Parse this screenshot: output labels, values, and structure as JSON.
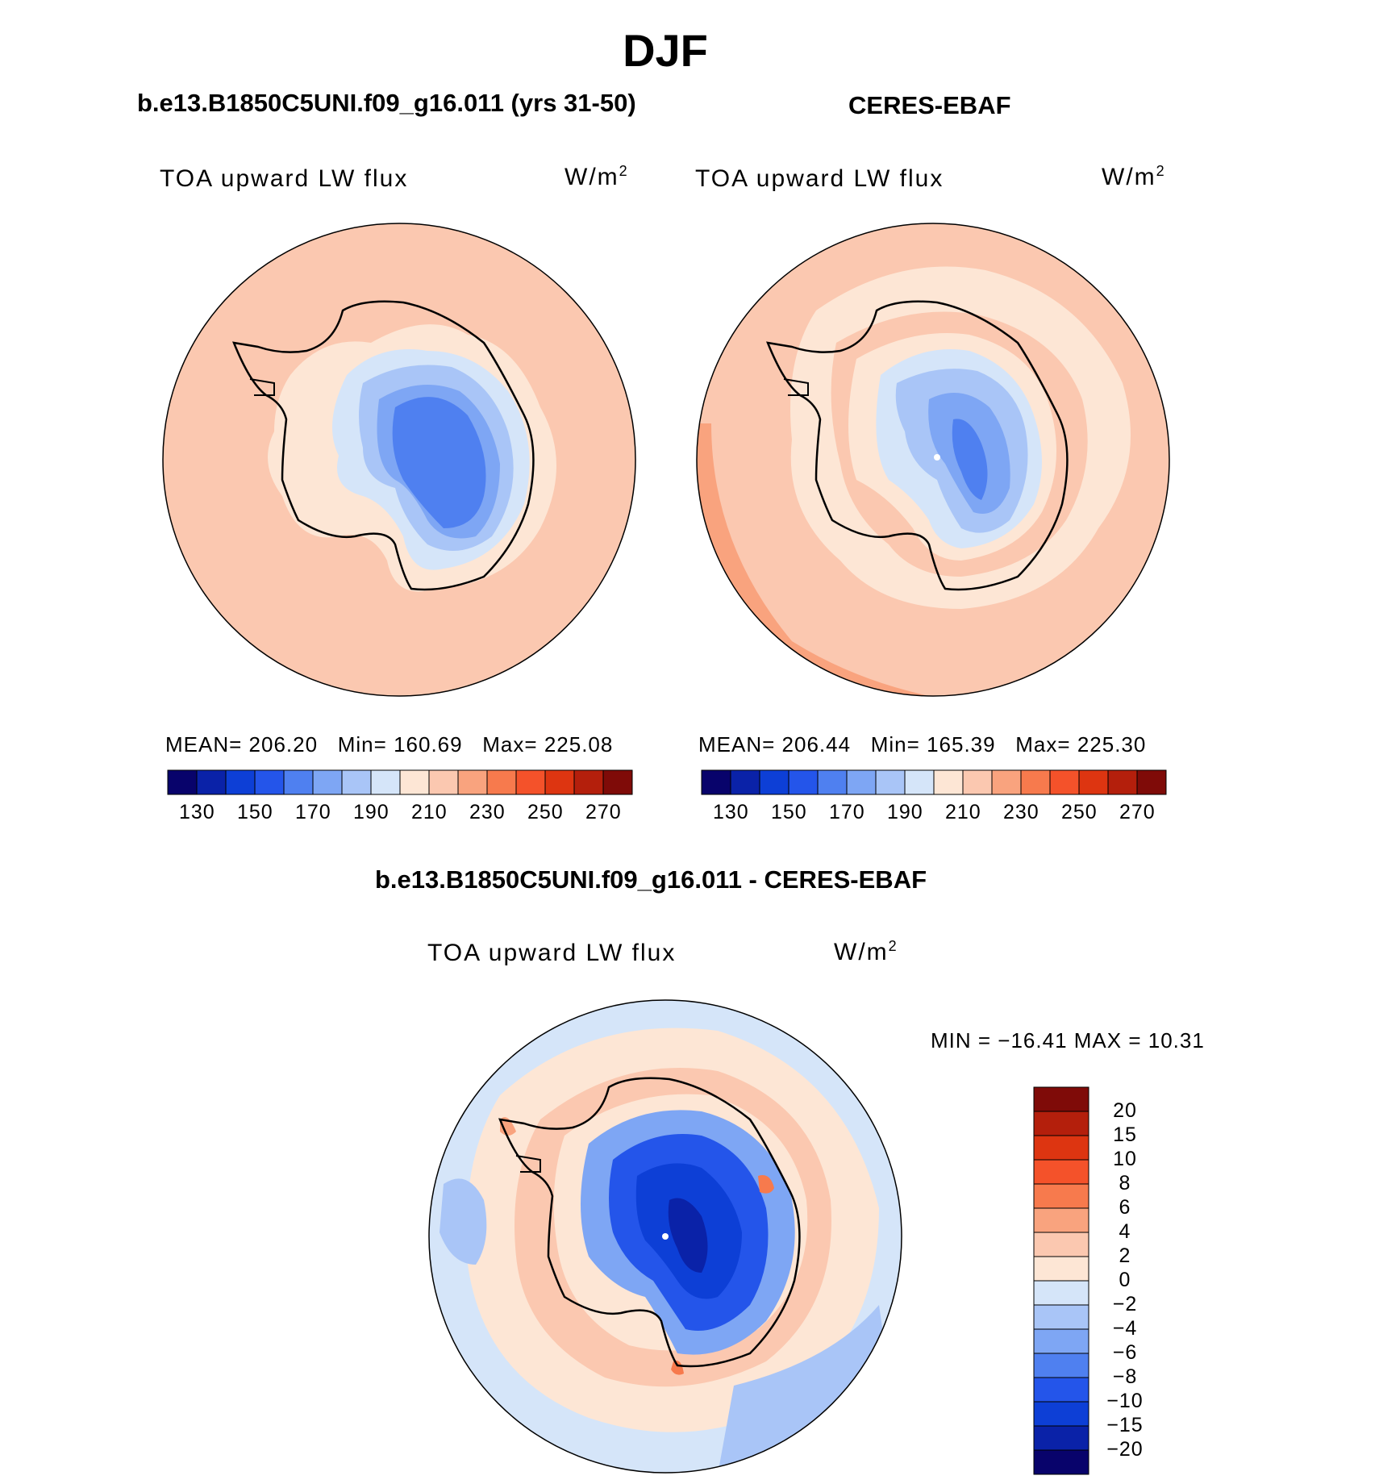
{
  "title": "DJF",
  "panels": {
    "model": {
      "title": "b.e13.B1850C5UNI.f09_g16.011 (yrs 31-50)",
      "variable": "TOA upward LW flux",
      "units": "W/m",
      "units_sup": "2",
      "mean_label": "MEAN=",
      "mean": "206.20",
      "min_label": "Min=",
      "min": "160.69",
      "max_label": "Max=",
      "max": "225.08"
    },
    "obs": {
      "title": "CERES-EBAF",
      "variable": "TOA upward LW flux",
      "units": "W/m",
      "units_sup": "2",
      "mean_label": "MEAN=",
      "mean": "206.44",
      "min_label": "Min=",
      "min": "165.39",
      "max_label": "Max=",
      "max": "225.30"
    },
    "diff": {
      "title": "b.e13.B1850C5UNI.f09_g16.011 - CERES-EBAF",
      "variable": "TOA upward LW flux",
      "units": "W/m",
      "units_sup": "2",
      "minmax_label": "MIN = −16.41 MAX =   10.31"
    }
  },
  "colorbar_main": {
    "tick_labels": [
      "130",
      "150",
      "170",
      "190",
      "210",
      "230",
      "250",
      "270"
    ],
    "colors": [
      "#08036b",
      "#0a22a8",
      "#0d3fd6",
      "#2455ea",
      "#4f80f0",
      "#7ea6f4",
      "#a9c5f7",
      "#d5e5f9",
      "#fde6d5",
      "#fbc8b0",
      "#f9a37e",
      "#f77a4d",
      "#f4522a",
      "#dd3511",
      "#b41f0c",
      "#7f0b08"
    ]
  },
  "colorbar_diff": {
    "tick_labels": [
      "20",
      "15",
      "10",
      "8",
      "6",
      "4",
      "2",
      "0",
      "−2",
      "−4",
      "−6",
      "−8",
      "−10",
      "−15",
      "−20"
    ],
    "colors": [
      "#7f0b08",
      "#b41f0c",
      "#dd3511",
      "#f4522a",
      "#f77a4d",
      "#f9a37e",
      "#fbc8b0",
      "#fde6d5",
      "#d5e5f9",
      "#a9c5f7",
      "#7ea6f4",
      "#4f80f0",
      "#2455ea",
      "#0d3fd6",
      "#0a22a8",
      "#08036b"
    ]
  }
}
